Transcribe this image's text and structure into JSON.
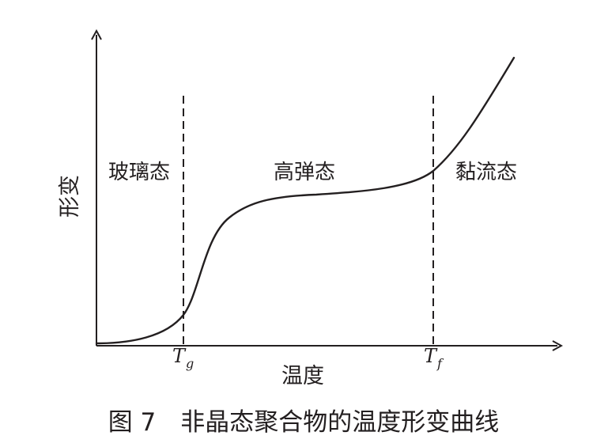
{
  "figure": {
    "caption": "图 7　非晶态聚合物的温度形变曲线",
    "y_axis_label": "形变",
    "x_axis_label": "温度",
    "regions": [
      "玻璃态",
      "高弹态",
      "黏流态"
    ],
    "tg_main": "T",
    "tg_sub": "g",
    "tf_main": "T",
    "tf_sub": "f",
    "line_color": "#231f20"
  }
}
